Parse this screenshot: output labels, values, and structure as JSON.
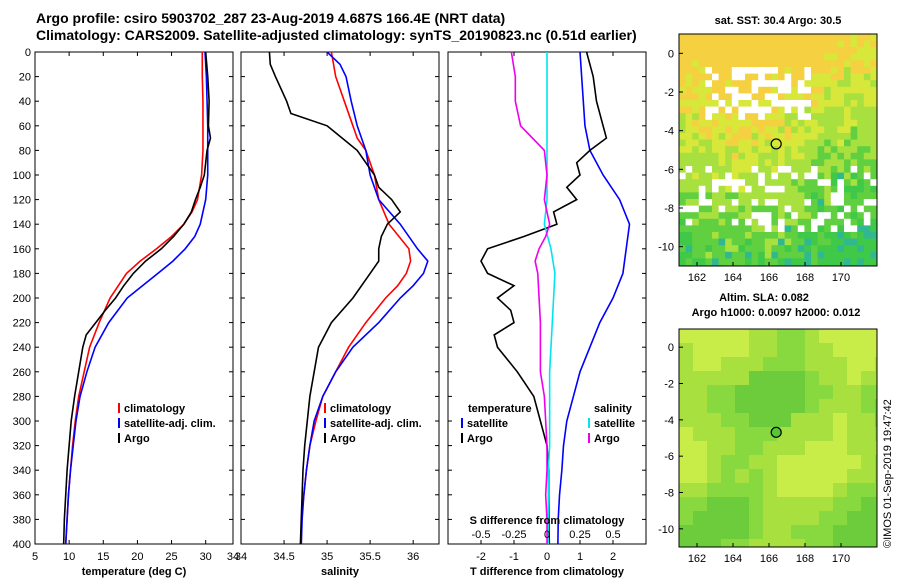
{
  "title": {
    "line1": "Argo profile: csiro 5903702_287 23-Aug-2019 4.687S 166.4E (NRT data)",
    "line2": "Climatology: CARS2009. Satellite-adjusted climatology: synTS_20190823.nc (0.51d earlier)"
  },
  "colors": {
    "climatology": "#ff0000",
    "satellite": "#0000ff",
    "argo": "#000000",
    "sat_salinity": "#00e5ee",
    "argo_salinity": "#ee00ee"
  },
  "chart_data": [
    {
      "type": "line",
      "name": "temperature",
      "xlabel": "temperature (deg C)",
      "ylabel": "",
      "xlim": [
        5,
        34
      ],
      "ylim": [
        400,
        0
      ],
      "xticks": [
        5,
        10,
        15,
        20,
        25,
        30
      ],
      "yticks": [
        0,
        20,
        40,
        60,
        80,
        100,
        120,
        140,
        160,
        180,
        200,
        220,
        240,
        260,
        280,
        300,
        320,
        340,
        360,
        380,
        400
      ],
      "legend": [
        "climatology",
        "satellite-adj. clim.",
        "Argo"
      ],
      "series": [
        {
          "name": "climatology",
          "depth": [
            0,
            20,
            40,
            60,
            80,
            100,
            120,
            130,
            140,
            150,
            160,
            170,
            180,
            200,
            220,
            240,
            260,
            280,
            300,
            320,
            340,
            360,
            380,
            400
          ],
          "values": [
            29.5,
            29.5,
            29.6,
            29.6,
            29.6,
            29.4,
            28.8,
            28.0,
            26.8,
            25.0,
            22.8,
            20.4,
            18.4,
            16.0,
            14.4,
            13.0,
            12.2,
            11.4,
            10.9,
            10.5,
            10.2,
            9.9,
            9.7,
            9.5
          ]
        },
        {
          "name": "satellite-adj. clim.",
          "depth": [
            0,
            20,
            40,
            60,
            80,
            100,
            120,
            140,
            150,
            160,
            170,
            180,
            200,
            220,
            240,
            260,
            280,
            300,
            320,
            340,
            360,
            380,
            400
          ],
          "values": [
            29.9,
            30.1,
            30.2,
            30.3,
            30.3,
            30.3,
            30.0,
            29.2,
            28.4,
            27.0,
            25.2,
            23.0,
            18.5,
            15.8,
            13.8,
            12.6,
            11.6,
            11.0,
            10.6,
            10.2,
            9.9,
            9.7,
            9.5
          ]
        },
        {
          "name": "Argo",
          "depth": [
            0,
            20,
            40,
            60,
            70,
            80,
            100,
            110,
            120,
            130,
            140,
            150,
            160,
            170,
            180,
            190,
            200,
            210,
            220,
            230,
            240,
            260,
            280,
            300,
            320,
            340,
            360,
            380,
            400
          ],
          "values": [
            30.0,
            30.3,
            30.5,
            30.4,
            30.7,
            30.2,
            29.8,
            29.2,
            28.5,
            27.9,
            26.8,
            25.3,
            23.5,
            21.2,
            19.4,
            18.0,
            16.8,
            15.3,
            13.9,
            12.5,
            12.0,
            11.4,
            10.8,
            10.3,
            10.0,
            9.7,
            9.5,
            9.3,
            9.2
          ]
        }
      ]
    },
    {
      "type": "line",
      "name": "salinity",
      "xlabel": "salinity",
      "ylabel": "",
      "xlim": [
        34,
        36.3
      ],
      "ylim": [
        400,
        0
      ],
      "xticks": [
        34,
        34.5,
        35,
        35.5,
        36
      ],
      "legend": [
        "climatology",
        "satellite-adj. clim.",
        "Argo"
      ],
      "series": [
        {
          "name": "climatology",
          "depth": [
            0,
            20,
            40,
            60,
            70,
            80,
            100,
            120,
            140,
            160,
            170,
            180,
            190,
            200,
            220,
            240,
            260,
            280,
            300,
            320,
            340,
            360,
            380,
            400
          ],
          "values": [
            35.05,
            35.1,
            35.2,
            35.3,
            35.35,
            35.45,
            35.55,
            35.6,
            35.72,
            35.95,
            35.97,
            35.92,
            35.82,
            35.68,
            35.45,
            35.25,
            35.1,
            34.95,
            34.87,
            34.8,
            34.76,
            34.73,
            34.7,
            34.7
          ]
        },
        {
          "name": "satellite-adj. clim.",
          "depth": [
            0,
            10,
            20,
            40,
            60,
            80,
            100,
            120,
            140,
            160,
            170,
            180,
            190,
            200,
            220,
            240,
            260,
            280,
            300,
            320,
            340,
            360,
            380,
            400
          ],
          "values": [
            35.0,
            35.15,
            35.22,
            35.28,
            35.35,
            35.45,
            35.5,
            35.6,
            35.85,
            36.05,
            36.17,
            36.12,
            36.0,
            35.85,
            35.6,
            35.3,
            35.1,
            34.95,
            34.85,
            34.8,
            34.76,
            34.73,
            34.71,
            34.7
          ]
        },
        {
          "name": "Argo",
          "depth": [
            0,
            10,
            20,
            40,
            50,
            60,
            80,
            100,
            110,
            120,
            130,
            140,
            150,
            160,
            170,
            180,
            200,
            220,
            240,
            260,
            280,
            300,
            320,
            340,
            360,
            380,
            400
          ],
          "values": [
            34.33,
            34.34,
            34.4,
            34.53,
            34.58,
            35.0,
            35.35,
            35.55,
            35.6,
            35.75,
            35.85,
            35.7,
            35.63,
            35.6,
            35.6,
            35.5,
            35.3,
            35.05,
            34.9,
            34.85,
            34.8,
            34.77,
            34.74,
            34.72,
            34.71,
            34.7,
            34.69
          ]
        }
      ]
    },
    {
      "type": "line",
      "name": "difference from climatology",
      "xlabel": "T difference from climatology",
      "xlabel_top": "S difference from climatology",
      "xlim": [
        -3,
        3
      ],
      "ylim": [
        400,
        0
      ],
      "xticks": [
        -2,
        -1,
        0,
        1,
        2
      ],
      "xticks_top": [
        "-0.5",
        "-0.25",
        "0",
        "0.25",
        "0.5"
      ],
      "legend_temperature": {
        "heading": "temperature",
        "items": [
          "satellite",
          "Argo"
        ]
      },
      "legend_salinity": {
        "heading": "salinity",
        "items": [
          "satellite",
          "Argo"
        ]
      },
      "series": [
        {
          "name": "temperature satellite",
          "depth": [
            0,
            20,
            40,
            60,
            80,
            100,
            120,
            140,
            160,
            180,
            200,
            220,
            240,
            260,
            280,
            300,
            320,
            340,
            360,
            380,
            400
          ],
          "values": [
            1.0,
            1.05,
            1.1,
            1.15,
            1.3,
            1.7,
            2.2,
            2.5,
            2.4,
            2.3,
            2.0,
            1.6,
            1.3,
            1.0,
            0.8,
            0.6,
            0.5,
            0.45,
            0.38,
            0.34,
            0.33
          ]
        },
        {
          "name": "temperature Argo",
          "depth": [
            0,
            20,
            40,
            60,
            70,
            80,
            90,
            100,
            110,
            120,
            130,
            140,
            150,
            160,
            170,
            180,
            190,
            200,
            210,
            220,
            230,
            240,
            250,
            260,
            280,
            300,
            320,
            340,
            360,
            380,
            400
          ],
          "values": [
            1.2,
            1.4,
            1.5,
            1.7,
            1.8,
            1.3,
            0.9,
            1.0,
            0.6,
            0.9,
            0.2,
            0.3,
            -0.7,
            -1.8,
            -2.0,
            -1.8,
            -1.0,
            -1.5,
            -1.1,
            -1.0,
            -1.6,
            -1.5,
            -1.2,
            -0.9,
            -0.4,
            -0.2,
            0.0,
            0.05,
            0.05,
            0.06,
            0.07
          ]
        },
        {
          "name": "salinity satellite",
          "depth": [
            0,
            20,
            40,
            60,
            80,
            100,
            120,
            140,
            160,
            180,
            200,
            220,
            240,
            260,
            280,
            300,
            320,
            340,
            360,
            380,
            400
          ],
          "values": [
            0.0,
            0.0,
            0.0,
            0.0,
            0.0,
            0.0,
            0.0,
            -0.02,
            0.03,
            0.06,
            0.05,
            0.04,
            0.03,
            0.02,
            0.02,
            0.02,
            0.02,
            0.01,
            0.01,
            0.01,
            0.01
          ]
        },
        {
          "name": "salinity Argo",
          "depth": [
            0,
            20,
            40,
            60,
            80,
            100,
            120,
            140,
            150,
            160,
            170,
            180,
            200,
            220,
            240,
            260,
            280,
            300,
            320,
            340,
            360,
            380,
            400
          ],
          "values": [
            -0.27,
            -0.24,
            -0.24,
            -0.2,
            -0.02,
            0.0,
            -0.02,
            0.02,
            -0.01,
            -0.06,
            -0.09,
            -0.07,
            -0.06,
            -0.05,
            -0.05,
            -0.05,
            -0.02,
            -0.01,
            0.0,
            0.0,
            -0.01,
            0.0,
            0.0
          ]
        }
      ]
    },
    {
      "type": "heatmap",
      "name": "sat-sst-map",
      "title": "sat. SST: 30.4 Argo: 30.5",
      "xticks": [
        162,
        164,
        166,
        168,
        170
      ],
      "yticks": [
        0,
        -2,
        -4,
        -6,
        -8,
        -10
      ],
      "xlim": [
        161,
        172
      ],
      "ylim": [
        -11,
        1
      ],
      "marker": {
        "lon": 166.4,
        "lat": -4.687,
        "style": "open-circle"
      }
    },
    {
      "type": "heatmap",
      "name": "sla-map",
      "title": "Altim. SLA: 0.082",
      "subtitle": "Argo h1000: 0.0097 h2000: 0.012",
      "xticks": [
        162,
        164,
        166,
        168,
        170
      ],
      "yticks": [
        0,
        -2,
        -4,
        -6,
        -8,
        -10
      ],
      "xlim": [
        161,
        172
      ],
      "ylim": [
        -11,
        1
      ],
      "marker": {
        "lon": 166.4,
        "lat": -4.687,
        "style": "filled-circle"
      }
    }
  ],
  "credit": "©IMOS 01-Sep-2019 19:47:42"
}
